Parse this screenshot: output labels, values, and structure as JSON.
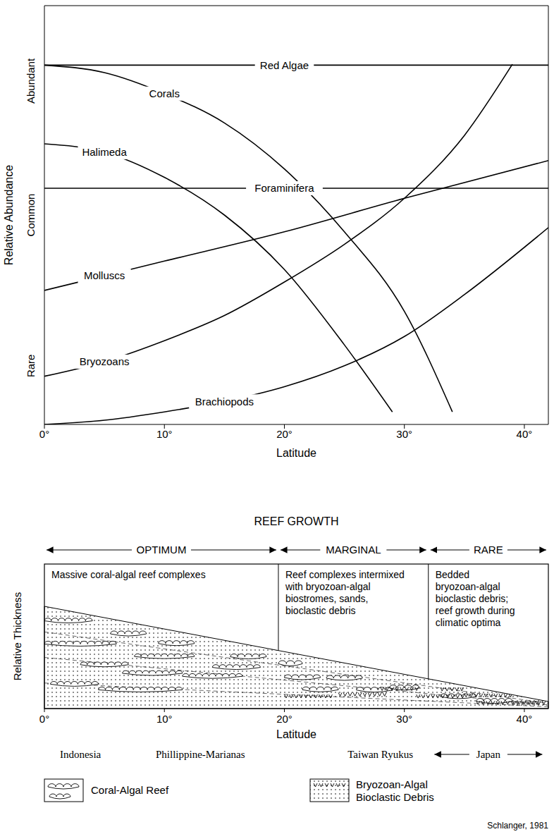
{
  "chart_data": {
    "type": "line",
    "x_label": "Latitude",
    "y_label": "Relative Abundance",
    "xlim": [
      0,
      42
    ],
    "xticks": [
      {
        "value": 0,
        "label": "0°"
      },
      {
        "value": 10,
        "label": "10°"
      },
      {
        "value": 20,
        "label": "20°"
      },
      {
        "value": 30,
        "label": "30°"
      },
      {
        "value": 40,
        "label": "40°"
      }
    ],
    "ylim": [
      0,
      10
    ],
    "yticks": [
      {
        "value": 1.4,
        "label": "Rare"
      },
      {
        "value": 5,
        "label": "Common"
      },
      {
        "value": 8.2,
        "label": "Abundant"
      }
    ],
    "grid": false,
    "series": [
      {
        "name": "Red Algae",
        "color": "#000000",
        "x": [
          0,
          10,
          20,
          30,
          42
        ],
        "values": [
          8.58,
          8.58,
          8.58,
          8.58,
          8.58
        ]
      },
      {
        "name": "Corals",
        "color": "#000000",
        "x": [
          0,
          5,
          10,
          15,
          20,
          25,
          30,
          34
        ],
        "values": [
          8.58,
          8.4,
          7.9,
          7.2,
          6.1,
          4.6,
          2.7,
          0.3
        ]
      },
      {
        "name": "Halimeda",
        "color": "#000000",
        "x": [
          0,
          5,
          10,
          15,
          20,
          25,
          29
        ],
        "values": [
          6.7,
          6.5,
          5.9,
          5.0,
          3.7,
          1.9,
          0.3
        ]
      },
      {
        "name": "Foraminifera",
        "color": "#000000",
        "x": [
          0,
          10,
          20,
          30,
          42
        ],
        "values": [
          5.64,
          5.64,
          5.64,
          5.64,
          5.64
        ]
      },
      {
        "name": "Molluscs",
        "color": "#000000",
        "x": [
          0,
          5,
          10,
          20,
          30,
          42
        ],
        "values": [
          3.2,
          3.55,
          3.9,
          4.6,
          5.4,
          6.3
        ]
      },
      {
        "name": "Bryozoans",
        "color": "#000000",
        "x": [
          0,
          5,
          10,
          15,
          20,
          25,
          30,
          35,
          39
        ],
        "values": [
          1.15,
          1.5,
          2.0,
          2.6,
          3.4,
          4.3,
          5.4,
          6.9,
          8.6
        ]
      },
      {
        "name": "Brachiopods",
        "color": "#000000",
        "x": [
          0,
          5,
          10,
          15,
          20,
          25,
          30,
          35,
          42
        ],
        "values": [
          0,
          0.1,
          0.3,
          0.55,
          0.9,
          1.4,
          2.1,
          3.1,
          4.7
        ]
      }
    ]
  },
  "diagram": {
    "title": "REEF GROWTH",
    "zones": [
      {
        "label": "OPTIMUM",
        "from": 0,
        "to": 19.5,
        "description": "Massive coral-algal reef complexes"
      },
      {
        "label": "MARGINAL",
        "from": 19.5,
        "to": 32,
        "description": "Reef complexes intermixed with bryozoan-algal biostromes, sands, bioclastic debris"
      },
      {
        "label": "RARE",
        "from": 32,
        "to": 42,
        "description": "Bedded bryozoan-algal bioclastic debris; reef growth during climatic optima"
      }
    ],
    "y_label": "Relative Thickness",
    "x_label": "Latitude",
    "xlim": [
      0,
      42
    ],
    "xticks": [
      {
        "value": 0,
        "label": "0°"
      },
      {
        "value": 10,
        "label": "10°"
      },
      {
        "value": 20,
        "label": "20°"
      },
      {
        "value": 30,
        "label": "30°"
      },
      {
        "value": 40,
        "label": "40°"
      }
    ],
    "locations": [
      {
        "label": "Indonesia",
        "latitude": 3
      },
      {
        "label": "Phillippine-Marianas",
        "latitude": 13
      },
      {
        "label": "Taiwan Ryukus",
        "latitude": 28
      },
      {
        "label": "Japan",
        "from": 32.5,
        "to": 41.5
      }
    ],
    "key": [
      "Coral-Algal Reef",
      "Bryozoan-Algal Bioclastic Debris"
    ],
    "source": "Schlanger, 1981"
  }
}
